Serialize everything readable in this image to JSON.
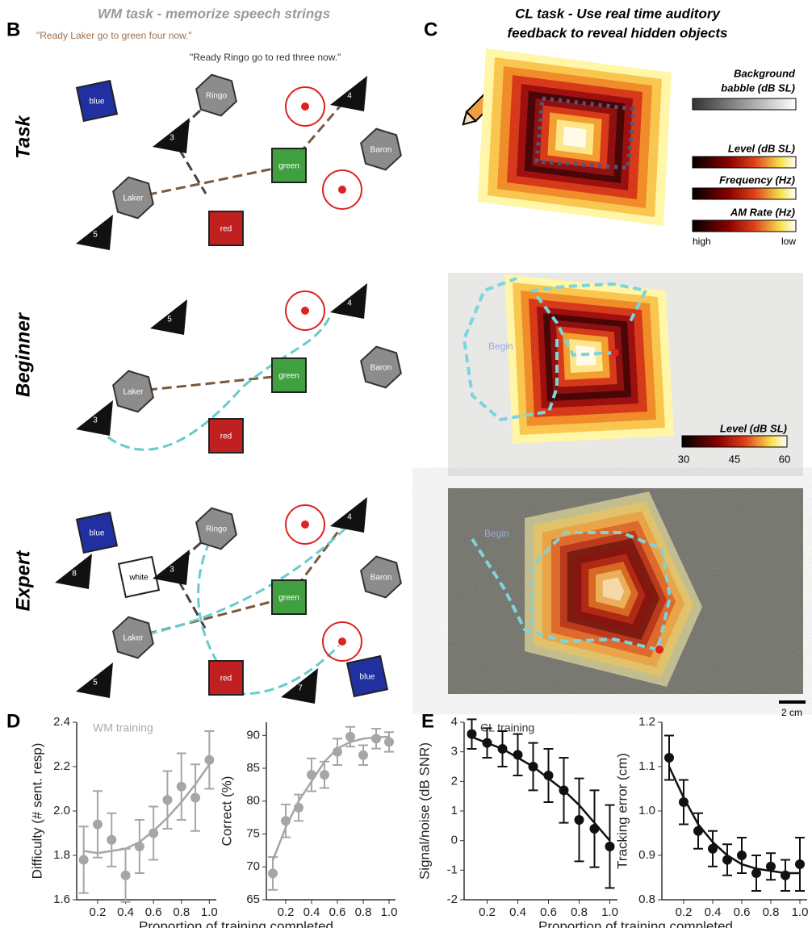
{
  "panel_letters": [
    "B",
    "C",
    "D",
    "E"
  ],
  "panel_b": {
    "title": "WM task - memorize speech strings",
    "quotes": [
      "\"Ready Laker go to green four now.\"",
      "\"Ready Ringo go to red three now.\""
    ],
    "rows": [
      "Task",
      "Beginner",
      "Expert"
    ],
    "shapes": [
      [
        "blue",
        "Ringo",
        "3",
        "4",
        "green",
        "Baron",
        "Laker",
        "red",
        "5"
      ],
      [
        "4",
        "5",
        "Baron",
        "green",
        "Laker",
        "red",
        "3"
      ],
      [
        "blue",
        "Ringo",
        "4",
        "white",
        "3",
        "8",
        "green",
        "Baron",
        "Laker",
        "red",
        "blue",
        "5",
        "7"
      ]
    ]
  },
  "panel_c": {
    "title": [
      "CL task - Use real time auditory",
      "feedback to reveal hidden objects"
    ],
    "babble": [
      "Background",
      "babble (dB SL)"
    ],
    "colorbars": [
      "Level (dB SL)",
      "Frequency (Hz)",
      "AM Rate (Hz)"
    ],
    "colorbar_ends": [
      "high",
      "low"
    ],
    "level_bar": {
      "title": "Level (dB SL)",
      "ticks": [
        "30",
        "45",
        "60"
      ]
    },
    "begin": [
      "Begin",
      "Begin"
    ],
    "scale": "2 cm"
  },
  "chart_data": [
    {
      "type": "errorbar",
      "annotation": "WM training",
      "ylabel": "Difficulty (# sent. resp)",
      "xlabel": "Proportion of training completed",
      "color": "#a6a6a6",
      "x": [
        0.1,
        0.2,
        0.3,
        0.4,
        0.5,
        0.6,
        0.7,
        0.8,
        0.9,
        1.0
      ],
      "values": [
        1.78,
        1.94,
        1.87,
        1.71,
        1.84,
        1.9,
        2.05,
        2.11,
        2.06,
        2.23
      ],
      "errors": [
        0.15,
        0.15,
        0.12,
        0.12,
        0.12,
        0.12,
        0.13,
        0.15,
        0.15,
        0.13
      ],
      "fit": [
        1.82,
        1.81,
        1.82,
        1.83,
        1.86,
        1.91,
        1.97,
        2.04,
        2.12,
        2.21
      ],
      "xlim": [
        0.05,
        1.05
      ],
      "xticks": [
        0.2,
        0.4,
        0.6,
        0.8,
        {
          "value": 1.0,
          "label": "1.0"
        }
      ],
      "ylim": [
        1.6,
        2.4
      ],
      "yticks": [
        1.6,
        1.8,
        {
          "value": 2.0,
          "label": "2.0"
        },
        2.2,
        2.4
      ]
    },
    {
      "type": "errorbar",
      "ylabel": "Correct (%)",
      "color": "#a6a6a6",
      "x": [
        0.1,
        0.2,
        0.3,
        0.4,
        0.5,
        0.6,
        0.7,
        0.8,
        0.9,
        1.0
      ],
      "values": [
        69,
        77,
        79,
        84,
        84,
        87.5,
        89.8,
        87,
        89.5,
        89
      ],
      "errors": [
        2.5,
        2.5,
        2,
        2.5,
        2,
        2,
        1.5,
        1.5,
        1.5,
        1.5
      ],
      "fit": [
        71,
        76,
        80,
        83,
        86,
        88,
        89,
        89.5,
        89.7,
        89.8
      ],
      "xlim": [
        0.05,
        1.05
      ],
      "xticks": [
        0.2,
        0.4,
        0.6,
        0.8,
        {
          "value": 1.0,
          "label": "1.0"
        }
      ],
      "ylim": [
        65,
        92
      ],
      "yticks": [
        65,
        70,
        75,
        80,
        85,
        90
      ]
    },
    {
      "type": "errorbar",
      "annotation": "CL training",
      "ylabel": "Signal/noise (dB SNR)",
      "xlabel": "Proportion of training completed",
      "color": "#111111",
      "x": [
        0.1,
        0.2,
        0.3,
        0.4,
        0.5,
        0.6,
        0.7,
        0.8,
        0.9,
        1.0
      ],
      "values": [
        3.6,
        3.3,
        3.1,
        2.9,
        2.5,
        2.2,
        1.7,
        0.7,
        0.4,
        -0.2
      ],
      "errors": [
        0.5,
        0.5,
        0.6,
        0.7,
        0.8,
        0.9,
        1.1,
        1.4,
        1.3,
        1.4
      ],
      "fit": [
        3.5,
        3.3,
        3.1,
        2.8,
        2.5,
        2.1,
        1.7,
        1.2,
        0.6,
        0.0
      ],
      "xlim": [
        0.05,
        1.05
      ],
      "xticks": [
        0.2,
        0.4,
        0.6,
        0.8,
        {
          "value": 1.0,
          "label": "1.0"
        }
      ],
      "ylim": [
        -2,
        4
      ],
      "yticks": [
        -2,
        -1,
        0,
        1,
        2,
        3,
        4
      ]
    },
    {
      "type": "errorbar",
      "ylabel": "Tracking error (cm)",
      "color": "#111111",
      "x": [
        0.1,
        0.2,
        0.3,
        0.4,
        0.5,
        0.6,
        0.7,
        0.8,
        0.9,
        1.0
      ],
      "values": [
        1.12,
        1.02,
        0.955,
        0.915,
        0.89,
        0.9,
        0.86,
        0.875,
        0.855,
        0.88
      ],
      "errors": [
        0.05,
        0.05,
        0.04,
        0.04,
        0.035,
        0.04,
        0.04,
        0.03,
        0.035,
        0.06
      ],
      "fit": [
        1.1,
        1.03,
        0.97,
        0.93,
        0.9,
        0.88,
        0.87,
        0.865,
        0.86,
        0.86
      ],
      "xlim": [
        0.05,
        1.05
      ],
      "xticks": [
        0.2,
        0.4,
        0.6,
        0.8,
        {
          "value": 1.0,
          "label": "1.0"
        }
      ],
      "ylim": [
        0.8,
        1.2
      ],
      "yticks": [
        0.8,
        0.9,
        {
          "value": 1.0,
          "label": "1.0"
        },
        1.1,
        1.2
      ]
    }
  ]
}
